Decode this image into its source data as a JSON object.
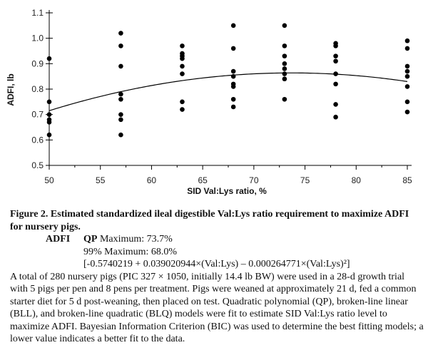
{
  "chart_data": {
    "type": "scatter",
    "xlabel": "SID Val:Lys ratio, %",
    "ylabel": "ADFI, lb",
    "xlim": [
      50,
      85
    ],
    "ylim": [
      0.5,
      1.1
    ],
    "x_ticks": [
      "50",
      "55",
      "60",
      "65",
      "70",
      "75",
      "80",
      "85"
    ],
    "y_ticks": [
      "0.5",
      "0.6",
      "0.7",
      "0.8",
      "0.9",
      "1.0",
      "1.1"
    ],
    "y_tick_values": [
      0.5,
      0.6,
      0.7,
      0.8,
      0.9,
      1.0,
      1.1
    ],
    "x_tick_values": [
      50,
      55,
      60,
      65,
      70,
      75,
      80,
      85
    ],
    "points": [
      {
        "x": 50,
        "y": 0.92
      },
      {
        "x": 50,
        "y": 0.75
      },
      {
        "x": 50,
        "y": 0.7
      },
      {
        "x": 50,
        "y": 0.68
      },
      {
        "x": 50,
        "y": 0.67
      },
      {
        "x": 50,
        "y": 0.62
      },
      {
        "x": 57,
        "y": 1.02
      },
      {
        "x": 57,
        "y": 0.97
      },
      {
        "x": 57,
        "y": 0.89
      },
      {
        "x": 57,
        "y": 0.78
      },
      {
        "x": 57,
        "y": 0.76
      },
      {
        "x": 57,
        "y": 0.7
      },
      {
        "x": 57,
        "y": 0.68
      },
      {
        "x": 57,
        "y": 0.62
      },
      {
        "x": 63,
        "y": 0.97
      },
      {
        "x": 63,
        "y": 0.94
      },
      {
        "x": 63,
        "y": 0.93
      },
      {
        "x": 63,
        "y": 0.92
      },
      {
        "x": 63,
        "y": 0.89
      },
      {
        "x": 63,
        "y": 0.86
      },
      {
        "x": 63,
        "y": 0.75
      },
      {
        "x": 63,
        "y": 0.72
      },
      {
        "x": 68,
        "y": 1.05
      },
      {
        "x": 68,
        "y": 0.96
      },
      {
        "x": 68,
        "y": 0.87
      },
      {
        "x": 68,
        "y": 0.85
      },
      {
        "x": 68,
        "y": 0.82
      },
      {
        "x": 68,
        "y": 0.81
      },
      {
        "x": 68,
        "y": 0.76
      },
      {
        "x": 68,
        "y": 0.73
      },
      {
        "x": 73,
        "y": 1.05
      },
      {
        "x": 73,
        "y": 0.97
      },
      {
        "x": 73,
        "y": 0.93
      },
      {
        "x": 73,
        "y": 0.9
      },
      {
        "x": 73,
        "y": 0.88
      },
      {
        "x": 73,
        "y": 0.86
      },
      {
        "x": 73,
        "y": 0.84
      },
      {
        "x": 73,
        "y": 0.76
      },
      {
        "x": 78,
        "y": 0.98
      },
      {
        "x": 78,
        "y": 0.97
      },
      {
        "x": 78,
        "y": 0.93
      },
      {
        "x": 78,
        "y": 0.91
      },
      {
        "x": 78,
        "y": 0.86
      },
      {
        "x": 78,
        "y": 0.82
      },
      {
        "x": 78,
        "y": 0.74
      },
      {
        "x": 78,
        "y": 0.69
      },
      {
        "x": 85,
        "y": 0.99
      },
      {
        "x": 85,
        "y": 0.96
      },
      {
        "x": 85,
        "y": 0.89
      },
      {
        "x": 85,
        "y": 0.87
      },
      {
        "x": 85,
        "y": 0.85
      },
      {
        "x": 85,
        "y": 0.81
      },
      {
        "x": 85,
        "y": 0.75
      },
      {
        "x": 85,
        "y": 0.71
      }
    ],
    "fit_curve": {
      "type": "quadratic",
      "intercept": -0.5740219,
      "linear": 0.039020944,
      "quadratic": -0.000264771
    },
    "point_color": "#000000",
    "curve_color": "#000000"
  },
  "caption": {
    "figure_title": "Figure 2. Estimated standardized ileal digestible Val:Lys ratio requirement to maximize ADFI for nursery pigs.",
    "adfi_label": "ADFI",
    "qp_label": "QP",
    "qp_maximum": "Maximum: 73.7%",
    "max99": "99% Maximum: 68.0%",
    "equation": "[-0.5740219 + 0.039020944×(Val:Lys) – 0.000264771×(Val:Lys)²]",
    "paragraph": "A total of 280 nursery pigs (PIC 327 × 1050, initially 14.4 lb BW) were used in a 28-d growth trial with 5 pigs per pen and 8 pens per treatment. Pigs were weaned at approximately 21 d, fed a common starter diet for 5 d post-weaning, then placed on test. Quadratic polynomial (QP), broken-line linear (BLL), and broken-line quadratic (BLQ) models were fit to estimate SID Val:Lys ratio level to maximize ADFI. Bayesian Information Criterion (BIC) was used to determine the best fitting models; a lower value indicates a better fit to the data."
  }
}
